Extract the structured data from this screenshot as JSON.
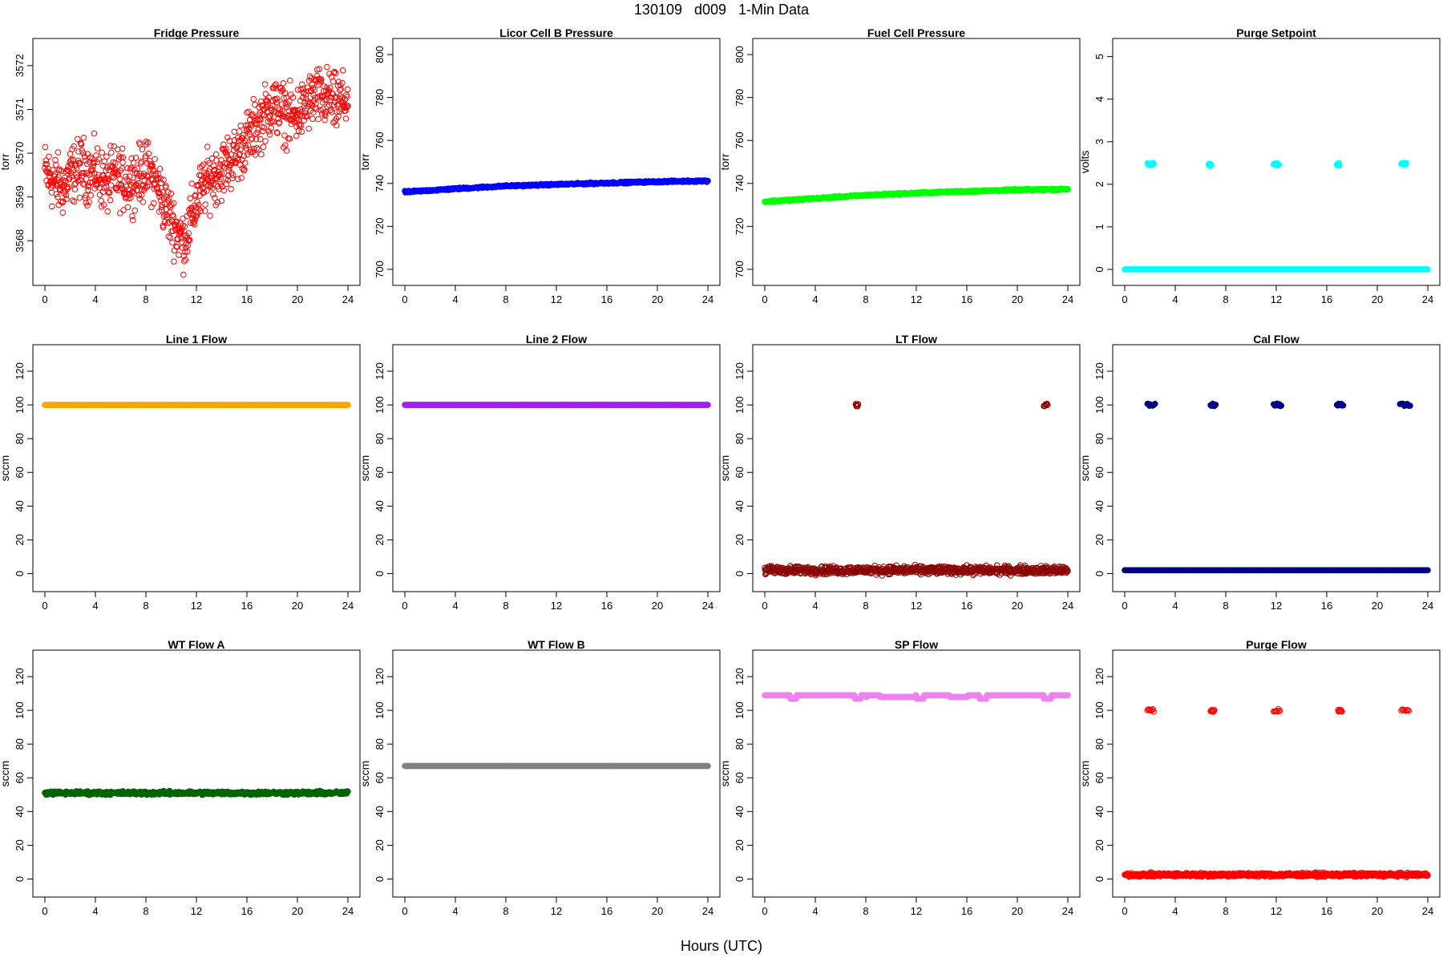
{
  "page": {
    "title": "130109   d009   1-Min Data",
    "xlabel": "Hours (UTC)"
  },
  "chart_data": [
    {
      "type": "scatter",
      "title": "Fridge Pressure",
      "ylabel": "torr",
      "xlim": [
        0,
        24
      ],
      "ylim": [
        3567.2,
        3572.4
      ],
      "xticks": [
        0,
        4,
        8,
        12,
        16,
        20,
        24
      ],
      "yticks": [
        3568,
        3569,
        3570,
        3571,
        3572
      ],
      "color": "#ff0000",
      "marker": "open",
      "series": [
        {
          "x": [
            0,
            0.5,
            1,
            1.5,
            2,
            2.5,
            3,
            3.5,
            4,
            4.5,
            5,
            5.5,
            6,
            6.5,
            7,
            7.5,
            8,
            8.5,
            9,
            9.5,
            10,
            10.5,
            11,
            11.5,
            12,
            12.5,
            13,
            13.5,
            14,
            14.5,
            15,
            15.5,
            16,
            16.5,
            17,
            17.5,
            18,
            18.5,
            19,
            19.5,
            20,
            20.5,
            21,
            21.5,
            22,
            22.5,
            23,
            23.5,
            24
          ],
          "y": [
            3569.6,
            3569.4,
            3569.3,
            3569.2,
            3569.5,
            3569.6,
            3569.7,
            3569.5,
            3569.6,
            3569.4,
            3569.3,
            3569.5,
            3569.4,
            3569.3,
            3569.4,
            3569.5,
            3569.6,
            3569.5,
            3569.2,
            3568.8,
            3568.5,
            3568.2,
            3568.0,
            3568.4,
            3568.9,
            3569.2,
            3569.4,
            3569.5,
            3569.6,
            3569.8,
            3569.9,
            3570.1,
            3570.3,
            3570.5,
            3570.7,
            3570.9,
            3571.1,
            3571.0,
            3570.9,
            3570.8,
            3570.9,
            3571.0,
            3571.2,
            3571.3,
            3571.2,
            3571.3,
            3571.1,
            3571.2,
            3571.2
          ]
        }
      ],
      "noise": 0.5
    },
    {
      "type": "scatter",
      "title": "Licor Cell B Pressure",
      "ylabel": "torr",
      "xlim": [
        0,
        24
      ],
      "ylim": [
        697,
        803
      ],
      "xticks": [
        0,
        4,
        8,
        12,
        16,
        20,
        24
      ],
      "yticks": [
        700,
        720,
        740,
        760,
        780,
        800
      ],
      "color": "#0000ff",
      "marker": "filled",
      "series": [
        {
          "x": [
            0,
            4,
            8,
            12,
            16,
            20,
            24
          ],
          "y": [
            736,
            737.5,
            738.8,
            739.5,
            740.2,
            740.8,
            741.2
          ]
        }
      ],
      "noise": 0.3
    },
    {
      "type": "scatter",
      "title": "Fuel Cell Pressure",
      "ylabel": "torr",
      "xlim": [
        0,
        24
      ],
      "ylim": [
        697,
        803
      ],
      "xticks": [
        0,
        4,
        8,
        12,
        16,
        20,
        24
      ],
      "yticks": [
        700,
        720,
        740,
        760,
        780,
        800
      ],
      "color": "#00ff00",
      "marker": "filled",
      "series": [
        {
          "x": [
            0,
            4,
            8,
            12,
            16,
            20,
            24
          ],
          "y": [
            731.5,
            733,
            734.5,
            735.5,
            736.3,
            737,
            737.3
          ]
        }
      ],
      "noise": 0.3
    },
    {
      "type": "scatter",
      "title": "Purge Setpoint",
      "ylabel": "volts",
      "xlim": [
        0,
        24
      ],
      "ylim": [
        -0.15,
        5.2
      ],
      "xticks": [
        0,
        4,
        8,
        12,
        16,
        20,
        24
      ],
      "yticks": [
        0,
        1,
        2,
        3,
        4,
        5
      ],
      "color": "#00ffff",
      "marker": "filled",
      "series": [
        {
          "x": [
            0,
            24
          ],
          "y": [
            0,
            0
          ]
        }
      ],
      "noise": 0,
      "clusters": [
        {
          "x": [
            1.8,
            2.3
          ],
          "y": 2.48
        },
        {
          "x": 6.75,
          "y": 2.46
        },
        {
          "x": [
            11.8,
            12.2
          ],
          "y": 2.47
        },
        {
          "x": 16.9,
          "y": 2.47
        },
        {
          "x": [
            21.9,
            22.3
          ],
          "y": 2.49
        }
      ]
    },
    {
      "type": "scatter",
      "title": "Line 1 Flow",
      "ylabel": "sccm",
      "xlim": [
        0,
        24
      ],
      "ylim": [
        -5,
        130
      ],
      "xticks": [
        0,
        4,
        8,
        12,
        16,
        20,
        24
      ],
      "yticks": [
        0,
        20,
        40,
        60,
        80,
        100,
        120
      ],
      "color": "#ffa500",
      "marker": "filled",
      "series": [
        {
          "x": [
            0,
            24
          ],
          "y": [
            100,
            100
          ]
        }
      ],
      "noise": 0
    },
    {
      "type": "scatter",
      "title": "Line 2 Flow",
      "ylabel": "sccm",
      "xlim": [
        0,
        24
      ],
      "ylim": [
        -5,
        130
      ],
      "xticks": [
        0,
        4,
        8,
        12,
        16,
        20,
        24
      ],
      "yticks": [
        0,
        20,
        40,
        60,
        80,
        100,
        120
      ],
      "color": "#a020f0",
      "marker": "filled",
      "series": [
        {
          "x": [
            0,
            24
          ],
          "y": [
            100,
            100
          ]
        }
      ],
      "noise": 0
    },
    {
      "type": "scatter",
      "title": "LT Flow",
      "ylabel": "sccm",
      "xlim": [
        0,
        24
      ],
      "ylim": [
        -5,
        130
      ],
      "xticks": [
        0,
        4,
        8,
        12,
        16,
        20,
        24
      ],
      "yticks": [
        0,
        20,
        40,
        60,
        80,
        100,
        120
      ],
      "color": "#8b0000",
      "marker": "open",
      "series": [
        {
          "x": [
            0,
            24
          ],
          "y": [
            2,
            2
          ]
        }
      ],
      "noise": 1.8,
      "clusters": [
        {
          "x": [
            7.2,
            7.4
          ],
          "y": 100
        },
        {
          "x": [
            22.1,
            22.4
          ],
          "y": 100
        }
      ]
    },
    {
      "type": "scatter",
      "title": "Cal Flow",
      "ylabel": "sccm",
      "xlim": [
        0,
        24
      ],
      "ylim": [
        -5,
        130
      ],
      "xticks": [
        0,
        4,
        8,
        12,
        16,
        20,
        24
      ],
      "yticks": [
        0,
        20,
        40,
        60,
        80,
        100,
        120
      ],
      "color": "#000080",
      "marker": "filled",
      "series": [
        {
          "x": [
            0,
            24
          ],
          "y": [
            2,
            2
          ]
        }
      ],
      "noise": 0,
      "clusters": [
        {
          "x": [
            1.8,
            2.4
          ],
          "y": 100
        },
        {
          "x": [
            6.8,
            7.2
          ],
          "y": 100
        },
        {
          "x": [
            11.8,
            12.4
          ],
          "y": 100
        },
        {
          "x": [
            16.8,
            17.3
          ],
          "y": 100
        },
        {
          "x": [
            21.8,
            22.6
          ],
          "y": 100
        }
      ]
    },
    {
      "type": "scatter",
      "title": "WT Flow A",
      "ylabel": "sccm",
      "xlim": [
        0,
        24
      ],
      "ylim": [
        -5,
        130
      ],
      "xticks": [
        0,
        4,
        8,
        12,
        16,
        20,
        24
      ],
      "yticks": [
        0,
        20,
        40,
        60,
        80,
        100,
        120
      ],
      "color": "#006400",
      "marker": "filled",
      "series": [
        {
          "x": [
            0,
            24
          ],
          "y": [
            51,
            51
          ]
        }
      ],
      "noise": 0.8
    },
    {
      "type": "scatter",
      "title": "WT Flow B",
      "ylabel": "sccm",
      "xlim": [
        0,
        24
      ],
      "ylim": [
        -5,
        130
      ],
      "xticks": [
        0,
        4,
        8,
        12,
        16,
        20,
        24
      ],
      "yticks": [
        0,
        20,
        40,
        60,
        80,
        100,
        120
      ],
      "color": "#808080",
      "marker": "filled",
      "series": [
        {
          "x": [
            0,
            24
          ],
          "y": [
            67,
            67
          ]
        }
      ],
      "noise": 0
    },
    {
      "type": "scatter",
      "title": "SP Flow",
      "ylabel": "sccm",
      "xlim": [
        0,
        24
      ],
      "ylim": [
        -5,
        130
      ],
      "xticks": [
        0,
        4,
        8,
        12,
        16,
        20,
        24
      ],
      "yticks": [
        0,
        20,
        40,
        60,
        80,
        100,
        120
      ],
      "color": "#ee82ee",
      "marker": "filled",
      "series": [
        {
          "x": [
            0,
            1.9,
            2.0,
            2.4,
            2.5,
            7.0,
            7.1,
            7.5,
            7.6,
            8.0,
            8.1,
            9.0,
            9.1,
            11.9,
            12.0,
            12.5,
            12.6,
            14.5,
            14.6,
            16.0,
            16.1,
            17.0,
            17.1,
            17.6,
            17.7,
            22.0,
            22.1,
            22.6,
            22.7,
            24
          ],
          "y": [
            109,
            109,
            107,
            107,
            109,
            109,
            107,
            107,
            109,
            108,
            109,
            109,
            108,
            109,
            107,
            107,
            109,
            109,
            108,
            108,
            109,
            107,
            107,
            109,
            109,
            109,
            107,
            107,
            109,
            109
          ]
        }
      ],
      "noise": 0,
      "series_mode": "step"
    },
    {
      "type": "scatter",
      "title": "Purge Flow",
      "ylabel": "sccm",
      "xlim": [
        0,
        24
      ],
      "ylim": [
        -5,
        130
      ],
      "xticks": [
        0,
        4,
        8,
        12,
        16,
        20,
        24
      ],
      "yticks": [
        0,
        20,
        40,
        60,
        80,
        100,
        120
      ],
      "color": "#ff0000",
      "marker": "open",
      "series": [
        {
          "x": [
            0,
            24
          ],
          "y": [
            2.5,
            2.5
          ]
        }
      ],
      "noise": 0.8,
      "clusters": [
        {
          "x": [
            1.8,
            2.3
          ],
          "y": 100
        },
        {
          "x": [
            6.8,
            7.1
          ],
          "y": 100
        },
        {
          "x": [
            11.8,
            12.3
          ],
          "y": 100
        },
        {
          "x": [
            16.9,
            17.2
          ],
          "y": 100
        },
        {
          "x": [
            21.9,
            22.5
          ],
          "y": 100
        }
      ]
    }
  ]
}
